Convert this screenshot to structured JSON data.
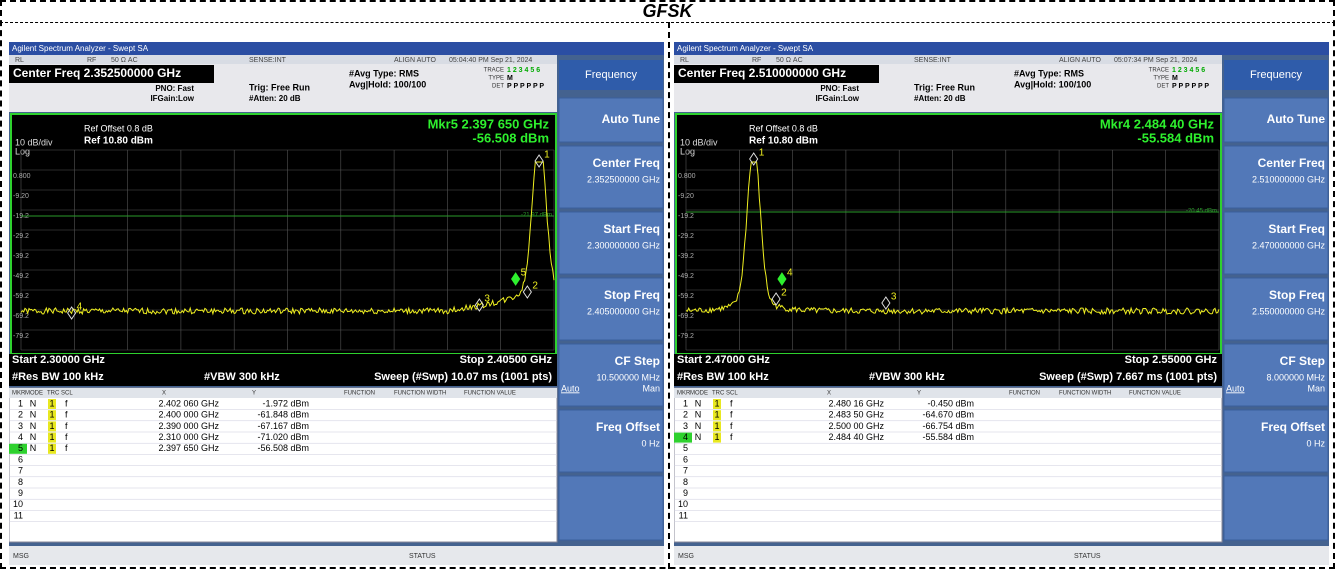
{
  "title": "GFSK",
  "panels": [
    {
      "window_title": "Agilent Spectrum Analyzer - Swept SA",
      "status_bar": [
        "RL",
        "RF",
        "50 Ω  AC",
        "SENSE:INT",
        "ALIGN AUTO",
        "05:04:40 PM Sep 21, 2024"
      ],
      "center_freq": "Center Freq 2.352500000 GHz",
      "pno": "PNO: Fast",
      "ifgain": "IFGain:Low",
      "trig": "Trig: Free Run",
      "atten": "#Atten: 20 dB",
      "avg_type": "#Avg Type: RMS",
      "avg_hold": "Avg|Hold: 100/100",
      "trace_labels": [
        "TRACE",
        "TYPE",
        "DET"
      ],
      "trace_numbers": "1 2 3 4 5 6",
      "trace_type": "M",
      "trace_det": "P P P P P P",
      "ref_offset": "Ref Offset 0.8 dB",
      "ref_level": "Ref 10.80 dBm",
      "scale": "10 dB/div",
      "log": "Log",
      "y_labels": [
        "0.800",
        "-9.20",
        "-19.2",
        "-29.2",
        "-39.2",
        "-49.2",
        "-59.2",
        "-69.2",
        "-79.2"
      ],
      "display_line": "-21.97 dBm",
      "marker_readout": [
        "Mkr5 2.397 650 GHz",
        "-56.508 dBm"
      ],
      "markers": [
        "1",
        "2",
        "3",
        "4",
        "5"
      ],
      "start": "Start 2.30000 GHz",
      "stop": "Stop 2.40500 GHz",
      "rbw": "#Res BW 100 kHz",
      "vbw": "#VBW 300 kHz",
      "sweep": "Sweep (#Swp)  10.07 ms (1001 pts)",
      "table": {
        "headers": [
          "MKR",
          "MODE",
          "TRC",
          "SCL",
          "X",
          "Y",
          "FUNCTION",
          "FUNCTION WIDTH",
          "FUNCTION VALUE"
        ],
        "rows": [
          [
            "1",
            "N",
            "1",
            "f",
            "2.402 060 GHz",
            "-1.972 dBm"
          ],
          [
            "2",
            "N",
            "1",
            "f",
            "2.400 000 GHz",
            "-61.848 dBm"
          ],
          [
            "3",
            "N",
            "1",
            "f",
            "2.390 000 GHz",
            "-67.167 dBm"
          ],
          [
            "4",
            "N",
            "1",
            "f",
            "2.310 000 GHz",
            "-71.020 dBm"
          ],
          [
            "5",
            "N",
            "1",
            "f",
            "2.397 650 GHz",
            "-56.508 dBm"
          ],
          [
            "6"
          ],
          [
            "7"
          ],
          [
            "8"
          ],
          [
            "9"
          ],
          [
            "10"
          ],
          [
            "11"
          ]
        ]
      },
      "softkeys": {
        "header": "Frequency",
        "keys": [
          {
            "label": "Auto Tune"
          },
          {
            "label": "Center Freq",
            "value": "2.352500000 GHz"
          },
          {
            "label": "Start Freq",
            "value": "2.300000000 GHz"
          },
          {
            "label": "Stop Freq",
            "value": "2.405000000 GHz"
          },
          {
            "label": "CF Step",
            "value": "10.500000 MHz"
          },
          {
            "label": "Freq Offset",
            "value": "0 Hz"
          }
        ],
        "cf_modes": [
          "Auto",
          "Man"
        ]
      },
      "footer": [
        "MSG",
        "STATUS"
      ]
    },
    {
      "window_title": "Agilent Spectrum Analyzer - Swept SA",
      "status_bar": [
        "RL",
        "RF",
        "50 Ω  AC",
        "SENSE:INT",
        "ALIGN AUTO",
        "05:07:34 PM Sep 21, 2024"
      ],
      "center_freq": "Center Freq 2.510000000 GHz",
      "pno": "PNO: Fast",
      "ifgain": "IFGain:Low",
      "trig": "Trig: Free Run",
      "atten": "#Atten: 20 dB",
      "avg_type": "#Avg Type: RMS",
      "avg_hold": "Avg|Hold: 100/100",
      "trace_labels": [
        "TRACE",
        "TYPE",
        "DET"
      ],
      "trace_numbers": "1 2 3 4 5 6",
      "trace_type": "M",
      "trace_det": "P P P P P P",
      "ref_offset": "Ref Offset 0.8 dB",
      "ref_level": "Ref 10.80 dBm",
      "scale": "10 dB/div",
      "log": "Log",
      "y_labels": [
        "0.800",
        "-9.20",
        "-19.2",
        "-29.2",
        "-39.2",
        "-49.2",
        "-59.2",
        "-69.2",
        "-79.2"
      ],
      "display_line": "-20.45 dBm",
      "marker_readout": [
        "Mkr4 2.484 40 GHz",
        "-55.584 dBm"
      ],
      "markers": [
        "1",
        "2",
        "3",
        "4"
      ],
      "start": "Start 2.47000 GHz",
      "stop": "Stop 2.55000 GHz",
      "rbw": "#Res BW 100 kHz",
      "vbw": "#VBW 300 kHz",
      "sweep": "Sweep (#Swp)  7.667 ms (1001 pts)",
      "table": {
        "headers": [
          "MKR",
          "MODE",
          "TRC",
          "SCL",
          "X",
          "Y",
          "FUNCTION",
          "FUNCTION WIDTH",
          "FUNCTION VALUE"
        ],
        "rows": [
          [
            "1",
            "N",
            "1",
            "f",
            "2.480 16 GHz",
            "-0.450 dBm"
          ],
          [
            "2",
            "N",
            "1",
            "f",
            "2.483 50 GHz",
            "-64.670 dBm"
          ],
          [
            "3",
            "N",
            "1",
            "f",
            "2.500 00 GHz",
            "-66.754 dBm"
          ],
          [
            "4",
            "N",
            "1",
            "f",
            "2.484 40 GHz",
            "-55.584 dBm"
          ],
          [
            "5"
          ],
          [
            "6"
          ],
          [
            "7"
          ],
          [
            "8"
          ],
          [
            "9"
          ],
          [
            "10"
          ],
          [
            "11"
          ]
        ]
      },
      "softkeys": {
        "header": "Frequency",
        "keys": [
          {
            "label": "Auto Tune"
          },
          {
            "label": "Center Freq",
            "value": "2.510000000 GHz"
          },
          {
            "label": "Start Freq",
            "value": "2.470000000 GHz"
          },
          {
            "label": "Stop Freq",
            "value": "2.550000000 GHz"
          },
          {
            "label": "CF Step",
            "value": "8.000000 MHz"
          },
          {
            "label": "Freq Offset",
            "value": "0 Hz"
          }
        ],
        "cf_modes": [
          "Auto",
          "Man"
        ]
      },
      "footer": [
        "MSG",
        "STATUS"
      ]
    }
  ]
}
